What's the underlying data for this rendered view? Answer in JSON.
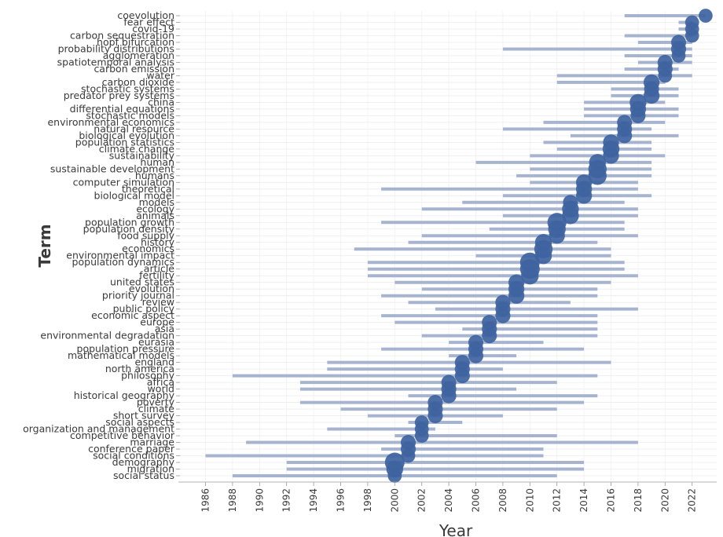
{
  "chart_data": {
    "type": "scatter",
    "xlabel": "Year",
    "ylabel": "Term",
    "xlim": [
      1985,
      2024
    ],
    "x_ticks": [
      "1986",
      "1988",
      "1990",
      "1992",
      "1994",
      "1996",
      "1998",
      "2000",
      "2002",
      "2004",
      "2006",
      "2008",
      "2010",
      "2012",
      "2014",
      "2016",
      "2018",
      "2020",
      "2022"
    ],
    "colors": {
      "bar": "#a7b4cf",
      "bubble": "#3e63a0",
      "grid": "#ececec"
    },
    "terms": [
      {
        "term": "coevolution",
        "start": 2017,
        "end": 2023,
        "peak": 2023,
        "freq": 3
      },
      {
        "term": "fear effect",
        "start": 2021,
        "end": 2022,
        "peak": 2022,
        "freq": 3
      },
      {
        "term": "covid-19",
        "start": 2021,
        "end": 2022,
        "peak": 2022,
        "freq": 3
      },
      {
        "term": "carbon sequestration",
        "start": 2017,
        "end": 2022,
        "peak": 2022,
        "freq": 3
      },
      {
        "term": "hopf bifurcation",
        "start": 2018,
        "end": 2022,
        "peak": 2021,
        "freq": 4
      },
      {
        "term": "probability distributions",
        "start": 2008,
        "end": 2022,
        "peak": 2021,
        "freq": 4
      },
      {
        "term": "agglomeration",
        "start": 2017,
        "end": 2022,
        "peak": 2021,
        "freq": 3
      },
      {
        "term": "spatiotemporal analysis",
        "start": 2018,
        "end": 2022,
        "peak": 2020,
        "freq": 4
      },
      {
        "term": "carbon emission",
        "start": 2017,
        "end": 2021,
        "peak": 2020,
        "freq": 4
      },
      {
        "term": "water",
        "start": 2012,
        "end": 2022,
        "peak": 2020,
        "freq": 3
      },
      {
        "term": "carbon dioxide",
        "start": 2012,
        "end": 2020,
        "peak": 2019,
        "freq": 5
      },
      {
        "term": "stochastic systems",
        "start": 2016,
        "end": 2021,
        "peak": 2019,
        "freq": 4
      },
      {
        "term": "predator prey systems",
        "start": 2016,
        "end": 2021,
        "peak": 2019,
        "freq": 5
      },
      {
        "term": "china",
        "start": 2014,
        "end": 2020,
        "peak": 2018,
        "freq": 6
      },
      {
        "term": "differential equations",
        "start": 2014,
        "end": 2021,
        "peak": 2018,
        "freq": 5
      },
      {
        "term": "stochastic models",
        "start": 2014,
        "end": 2021,
        "peak": 2018,
        "freq": 4
      },
      {
        "term": "environmental economics",
        "start": 2011,
        "end": 2020,
        "peak": 2017,
        "freq": 4
      },
      {
        "term": "natural resource",
        "start": 2008,
        "end": 2019,
        "peak": 2017,
        "freq": 4
      },
      {
        "term": "biological evolution",
        "start": 2013,
        "end": 2021,
        "peak": 2017,
        "freq": 4
      },
      {
        "term": "population statistics",
        "start": 2011,
        "end": 2019,
        "peak": 2016,
        "freq": 5
      },
      {
        "term": "climate change",
        "start": 2012,
        "end": 2019,
        "peak": 2016,
        "freq": 6
      },
      {
        "term": "sustainability",
        "start": 2010,
        "end": 2020,
        "peak": 2016,
        "freq": 5
      },
      {
        "term": "human",
        "start": 2006,
        "end": 2019,
        "peak": 2015,
        "freq": 6
      },
      {
        "term": "sustainable development",
        "start": 2010,
        "end": 2019,
        "peak": 2015,
        "freq": 8
      },
      {
        "term": "humans",
        "start": 2009,
        "end": 2019,
        "peak": 2015,
        "freq": 8
      },
      {
        "term": "computer simulation",
        "start": 2010,
        "end": 2018,
        "peak": 2014,
        "freq": 5
      },
      {
        "term": "theoretical",
        "start": 1999,
        "end": 2018,
        "peak": 2014,
        "freq": 5
      },
      {
        "term": "biological model",
        "start": 2008,
        "end": 2019,
        "peak": 2014,
        "freq": 5
      },
      {
        "term": "models",
        "start": 2005,
        "end": 2017,
        "peak": 2013,
        "freq": 4
      },
      {
        "term": "ecology",
        "start": 2002,
        "end": 2018,
        "peak": 2013,
        "freq": 6
      },
      {
        "term": "animals",
        "start": 2008,
        "end": 2018,
        "peak": 2013,
        "freq": 6
      },
      {
        "term": "population growth",
        "start": 1999,
        "end": 2017,
        "peak": 2012,
        "freq": 9
      },
      {
        "term": "population density",
        "start": 2007,
        "end": 2017,
        "peak": 2012,
        "freq": 7
      },
      {
        "term": "food supply",
        "start": 2002,
        "end": 2018,
        "peak": 2012,
        "freq": 5
      },
      {
        "term": "history",
        "start": 2001,
        "end": 2015,
        "peak": 2011,
        "freq": 6
      },
      {
        "term": "economics",
        "start": 1997,
        "end": 2016,
        "peak": 2011,
        "freq": 8
      },
      {
        "term": "environmental impact",
        "start": 2006,
        "end": 2016,
        "peak": 2011,
        "freq": 6
      },
      {
        "term": "population dynamics",
        "start": 1998,
        "end": 2017,
        "peak": 2010,
        "freq": 10
      },
      {
        "term": "article",
        "start": 1998,
        "end": 2017,
        "peak": 2010,
        "freq": 10
      },
      {
        "term": "fertility",
        "start": 1998,
        "end": 2018,
        "peak": 2010,
        "freq": 7
      },
      {
        "term": "united states",
        "start": 2000,
        "end": 2016,
        "peak": 2009,
        "freq": 5
      },
      {
        "term": "evolution",
        "start": 2002,
        "end": 2015,
        "peak": 2009,
        "freq": 5
      },
      {
        "term": "priority journal",
        "start": 1999,
        "end": 2015,
        "peak": 2009,
        "freq": 5
      },
      {
        "term": "review",
        "start": 2001,
        "end": 2013,
        "peak": 2008,
        "freq": 4
      },
      {
        "term": "public policy",
        "start": 2003,
        "end": 2018,
        "peak": 2008,
        "freq": 4
      },
      {
        "term": "economic aspect",
        "start": 1999,
        "end": 2015,
        "peak": 2008,
        "freq": 4
      },
      {
        "term": "europe",
        "start": 2000,
        "end": 2015,
        "peak": 2007,
        "freq": 4
      },
      {
        "term": "asia",
        "start": 2005,
        "end": 2015,
        "peak": 2007,
        "freq": 4
      },
      {
        "term": "environmental degradation",
        "start": 2002,
        "end": 2015,
        "peak": 2007,
        "freq": 4
      },
      {
        "term": "eurasia",
        "start": 2004,
        "end": 2011,
        "peak": 2006,
        "freq": 4
      },
      {
        "term": "population pressure",
        "start": 1999,
        "end": 2014,
        "peak": 2006,
        "freq": 4
      },
      {
        "term": "mathematical models",
        "start": 2004,
        "end": 2009,
        "peak": 2006,
        "freq": 4
      },
      {
        "term": "england",
        "start": 1995,
        "end": 2016,
        "peak": 2005,
        "freq": 4
      },
      {
        "term": "north america",
        "start": 1995,
        "end": 2008,
        "peak": 2005,
        "freq": 4
      },
      {
        "term": "philosophy",
        "start": 1988,
        "end": 2015,
        "peak": 2005,
        "freq": 4
      },
      {
        "term": "africa",
        "start": 1993,
        "end": 2012,
        "peak": 2004,
        "freq": 4
      },
      {
        "term": "world",
        "start": 1993,
        "end": 2009,
        "peak": 2004,
        "freq": 4
      },
      {
        "term": "historical geography",
        "start": 2001,
        "end": 2015,
        "peak": 2004,
        "freq": 4
      },
      {
        "term": "poverty",
        "start": 1993,
        "end": 2014,
        "peak": 2003,
        "freq": 4
      },
      {
        "term": "climate",
        "start": 1996,
        "end": 2012,
        "peak": 2003,
        "freq": 4
      },
      {
        "term": "short survey",
        "start": 1998,
        "end": 2008,
        "peak": 2003,
        "freq": 4
      },
      {
        "term": "social aspects",
        "start": 2001,
        "end": 2005,
        "peak": 2002,
        "freq": 3
      },
      {
        "term": "organization and management",
        "start": 1995,
        "end": 2003,
        "peak": 2002,
        "freq": 3
      },
      {
        "term": "competitive behavior",
        "start": 2000,
        "end": 2012,
        "peak": 2002,
        "freq": 3
      },
      {
        "term": "marriage",
        "start": 1989,
        "end": 2018,
        "peak": 2001,
        "freq": 4
      },
      {
        "term": "conference paper",
        "start": 1999,
        "end": 2011,
        "peak": 2001,
        "freq": 4
      },
      {
        "term": "social conditions",
        "start": 1986,
        "end": 2011,
        "peak": 2001,
        "freq": 3
      },
      {
        "term": "demography",
        "start": 1992,
        "end": 2014,
        "peak": 2000,
        "freq": 10
      },
      {
        "term": "migration",
        "start": 1992,
        "end": 2014,
        "peak": 2000,
        "freq": 6
      },
      {
        "term": "social status",
        "start": 1988,
        "end": 2012,
        "peak": 2000,
        "freq": 3
      }
    ]
  }
}
